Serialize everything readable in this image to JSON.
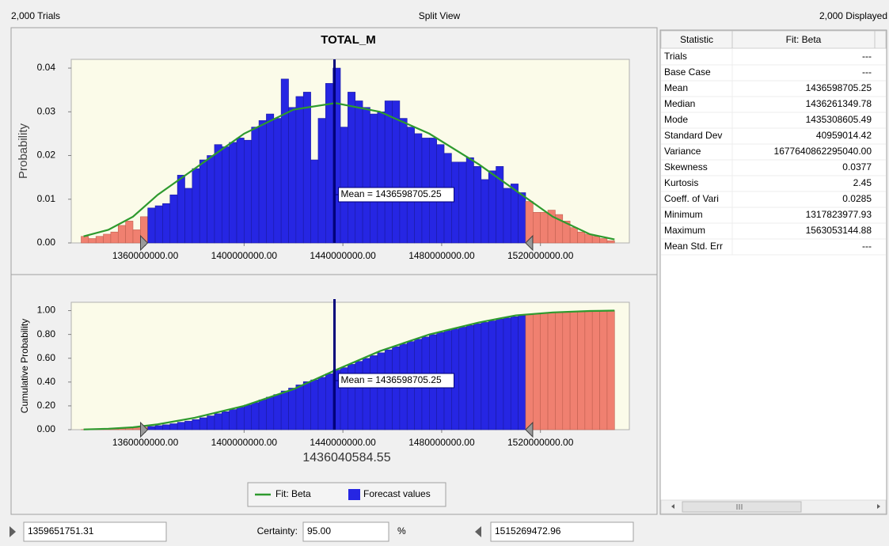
{
  "header": {
    "trials": "2,000 Trials",
    "view": "Split View",
    "displayed": "2,000 Displayed"
  },
  "chart_data": [
    {
      "type": "histogram",
      "title": "TOTAL_M",
      "y_label": "Probability",
      "bins": [
        1334000000,
        1337000000,
        1340000000,
        1343000000,
        1346000000,
        1349000000,
        1352000000,
        1355000000,
        1358000000,
        1361000000,
        1364000000,
        1367000000,
        1370000000,
        1373000000,
        1376000000,
        1379000000,
        1382000000,
        1385000000,
        1388000000,
        1391000000,
        1394000000,
        1397000000,
        1400000000,
        1403000000,
        1406000000,
        1409000000,
        1412000000,
        1415000000,
        1418000000,
        1421000000,
        1424000000,
        1427000000,
        1430000000,
        1433000000,
        1436000000,
        1439000000,
        1442000000,
        1445000000,
        1448000000,
        1451000000,
        1454000000,
        1457000000,
        1460000000,
        1463000000,
        1466000000,
        1469000000,
        1472000000,
        1475000000,
        1478000000,
        1481000000,
        1484000000,
        1487000000,
        1490000000,
        1493000000,
        1496000000,
        1499000000,
        1502000000,
        1505000000,
        1508000000,
        1511000000,
        1514000000,
        1517000000,
        1520000000,
        1523000000,
        1526000000,
        1529000000,
        1532000000,
        1535000000,
        1538000000,
        1541000000,
        1544000000,
        1547000000,
        1550000000
      ],
      "series": [
        {
          "color": "#2626e3",
          "values": [
            0.0015,
            0.001,
            0.0015,
            0.002,
            0.0025,
            0.004,
            0.005,
            0.003,
            0.006,
            0.008,
            0.0085,
            0.009,
            0.011,
            0.0155,
            0.0125,
            0.017,
            0.019,
            0.02,
            0.0225,
            0.022,
            0.023,
            0.024,
            0.0235,
            0.0265,
            0.028,
            0.0295,
            0.0285,
            0.0375,
            0.031,
            0.0335,
            0.0345,
            0.019,
            0.0285,
            0.0365,
            0.04,
            0.0265,
            0.0345,
            0.0325,
            0.031,
            0.0295,
            0.03,
            0.0325,
            0.0325,
            0.0285,
            0.0265,
            0.025,
            0.024,
            0.024,
            0.0225,
            0.0205,
            0.0185,
            0.0185,
            0.0195,
            0.0175,
            0.0145,
            0.0165,
            0.0175,
            0.0125,
            0.0135,
            0.0115,
            0.0095,
            0.007,
            0.007,
            0.0075,
            0.0065,
            0.005,
            0.0035,
            0.0025,
            0.002,
            0.0015,
            0.001,
            0.0005
          ]
        },
        {
          "type": "line",
          "color": "#2e9a2e",
          "x": [
            1335000000,
            1345000000,
            1355000000,
            1365000000,
            1380000000,
            1400000000,
            1420000000,
            1437000000,
            1455000000,
            1475000000,
            1495000000,
            1510000000,
            1525000000,
            1540000000,
            1550000000
          ],
          "values": [
            0.0015,
            0.003,
            0.006,
            0.011,
            0.017,
            0.025,
            0.0305,
            0.032,
            0.03,
            0.025,
            0.018,
            0.012,
            0.006,
            0.002,
            0.0008
          ]
        }
      ],
      "outside_color": "#f08070",
      "mean": 1436598705.25,
      "annotation": "Mean = 1436598705.25",
      "xlim": [
        1330000000,
        1556000000
      ],
      "xticks": [
        {
          "value": 1360000000,
          "label": "1360000000.00"
        },
        {
          "value": 1400000000,
          "label": "1400000000.00"
        },
        {
          "value": 1440000000,
          "label": "1440000000.00"
        },
        {
          "value": 1480000000,
          "label": "1480000000.00"
        },
        {
          "value": 1520000000,
          "label": "1520000000.00"
        }
      ],
      "ylim": [
        0,
        0.042
      ],
      "yticks": [
        {
          "value": 0,
          "label": "0.00"
        },
        0.01,
        0.02,
        0.03,
        0.04
      ]
    },
    {
      "type": "histogram",
      "y_label": "Cumulative Probability",
      "x_label": "1436040584.55",
      "bins": [
        1334000000,
        1337000000,
        1340000000,
        1343000000,
        1346000000,
        1349000000,
        1352000000,
        1355000000,
        1358000000,
        1361000000,
        1364000000,
        1367000000,
        1370000000,
        1373000000,
        1376000000,
        1379000000,
        1382000000,
        1385000000,
        1388000000,
        1391000000,
        1394000000,
        1397000000,
        1400000000,
        1403000000,
        1406000000,
        1409000000,
        1412000000,
        1415000000,
        1418000000,
        1421000000,
        1424000000,
        1427000000,
        1430000000,
        1433000000,
        1436000000,
        1439000000,
        1442000000,
        1445000000,
        1448000000,
        1451000000,
        1454000000,
        1457000000,
        1460000000,
        1463000000,
        1466000000,
        1469000000,
        1472000000,
        1475000000,
        1478000000,
        1481000000,
        1484000000,
        1487000000,
        1490000000,
        1493000000,
        1496000000,
        1499000000,
        1502000000,
        1505000000,
        1508000000,
        1511000000,
        1514000000,
        1517000000,
        1520000000,
        1523000000,
        1526000000,
        1529000000,
        1532000000,
        1535000000,
        1538000000,
        1541000000,
        1544000000,
        1547000000,
        1550000000
      ],
      "series": [
        {
          "name": "Forecast values",
          "color": "#2626e3",
          "values": [
            0.001,
            0.002,
            0.003,
            0.005,
            0.007,
            0.01,
            0.014,
            0.016,
            0.021,
            0.027,
            0.034,
            0.041,
            0.05,
            0.062,
            0.072,
            0.085,
            0.1,
            0.116,
            0.134,
            0.151,
            0.169,
            0.188,
            0.207,
            0.227,
            0.25,
            0.273,
            0.295,
            0.325,
            0.349,
            0.376,
            0.403,
            0.418,
            0.44,
            0.469,
            0.501,
            0.521,
            0.549,
            0.574,
            0.599,
            0.622,
            0.646,
            0.671,
            0.697,
            0.719,
            0.74,
            0.76,
            0.779,
            0.798,
            0.816,
            0.832,
            0.846,
            0.861,
            0.876,
            0.89,
            0.901,
            0.914,
            0.928,
            0.938,
            0.949,
            0.958,
            0.965,
            0.971,
            0.976,
            0.982,
            0.987,
            0.991,
            0.994,
            0.996,
            0.998,
            0.999,
            1,
            1
          ]
        },
        {
          "name": "Fit: Beta",
          "type": "line",
          "color": "#2e9a2e",
          "x": [
            1335000000,
            1345000000,
            1355000000,
            1365000000,
            1380000000,
            1400000000,
            1420000000,
            1437000000,
            1455000000,
            1475000000,
            1495000000,
            1510000000,
            1525000000,
            1540000000,
            1550000000
          ],
          "values": [
            0.002,
            0.008,
            0.02,
            0.045,
            0.1,
            0.2,
            0.34,
            0.5,
            0.66,
            0.8,
            0.9,
            0.96,
            0.985,
            0.997,
            1
          ]
        }
      ],
      "outside_color": "#f08070",
      "mean": 1436598705.25,
      "annotation": "Mean = 1436598705.25",
      "legend": "bottom",
      "xlim": [
        1330000000,
        1556000000
      ],
      "xticks": [
        {
          "value": 1360000000,
          "label": "1360000000.00"
        },
        {
          "value": 1400000000,
          "label": "1400000000.00"
        },
        {
          "value": 1440000000,
          "label": "1440000000.00"
        },
        {
          "value": 1480000000,
          "label": "1480000000.00"
        },
        {
          "value": 1520000000,
          "label": "1520000000.00"
        }
      ],
      "ylim": [
        0,
        1.07
      ],
      "yticks": [
        {
          "value": 0,
          "label": "0.00"
        },
        {
          "value": 0.2,
          "label": "0.20"
        },
        {
          "value": 0.4,
          "label": "0.40"
        },
        {
          "value": 0.6,
          "label": "0.60"
        },
        {
          "value": 0.8,
          "label": "0.80"
        },
        {
          "value": 1,
          "label": "1.00"
        }
      ]
    }
  ],
  "statistics": {
    "columns": [
      "Statistic",
      "Fit: Beta"
    ],
    "rows": [
      [
        "Trials",
        "---"
      ],
      [
        "Base Case",
        "---"
      ],
      [
        "Mean",
        "1436598705.25"
      ],
      [
        "Median",
        "1436261349.78"
      ],
      [
        "Mode",
        "1435308605.49"
      ],
      [
        "Standard Dev",
        "40959014.42"
      ],
      [
        "Variance",
        "1677640862295040.00"
      ],
      [
        "Skewness",
        "0.0377"
      ],
      [
        "Kurtosis",
        "2.45"
      ],
      [
        "Coeff. of Vari",
        "0.0285"
      ],
      [
        "Minimum",
        "1317823977.93"
      ],
      [
        "Maximum",
        "1563053144.88"
      ],
      [
        "Mean Std. Err",
        "---"
      ]
    ]
  },
  "certainty": {
    "lower": 1359651751.31,
    "label": "Certainty:",
    "value": "95.00",
    "unit": "%",
    "upper": 1515269472.96
  }
}
